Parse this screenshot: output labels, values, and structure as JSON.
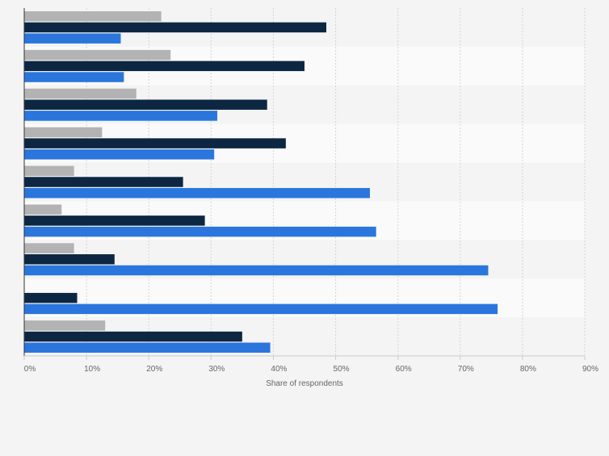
{
  "chart_data": {
    "type": "bar",
    "orientation": "horizontal",
    "title": "",
    "xlabel": "Share of respondents",
    "ylabel": "",
    "xlim": [
      0,
      90
    ],
    "tick_values": [
      0,
      10,
      20,
      30,
      40,
      50,
      60,
      70,
      80,
      90
    ],
    "tick_labels": [
      "0%",
      "10%",
      "20%",
      "30%",
      "40%",
      "50%",
      "60%",
      "70%",
      "80%",
      "90%"
    ],
    "grid": true,
    "legend": "none",
    "categories": [
      "",
      "",
      "",
      "",
      "",
      "",
      "",
      "",
      ""
    ],
    "series": [
      {
        "name": "",
        "color": "#b3b3b3",
        "values": [
          22,
          23.5,
          18,
          12.5,
          8,
          6,
          8,
          0,
          13
        ]
      },
      {
        "name": "",
        "color": "#0d2743",
        "values": [
          48.5,
          45,
          39,
          42,
          25.5,
          29,
          14.5,
          8.5,
          35
        ]
      },
      {
        "name": "",
        "color": "#2a76dd",
        "values": [
          15.5,
          16,
          31,
          30.5,
          55.5,
          56.5,
          74.5,
          76,
          39.5
        ]
      }
    ]
  }
}
